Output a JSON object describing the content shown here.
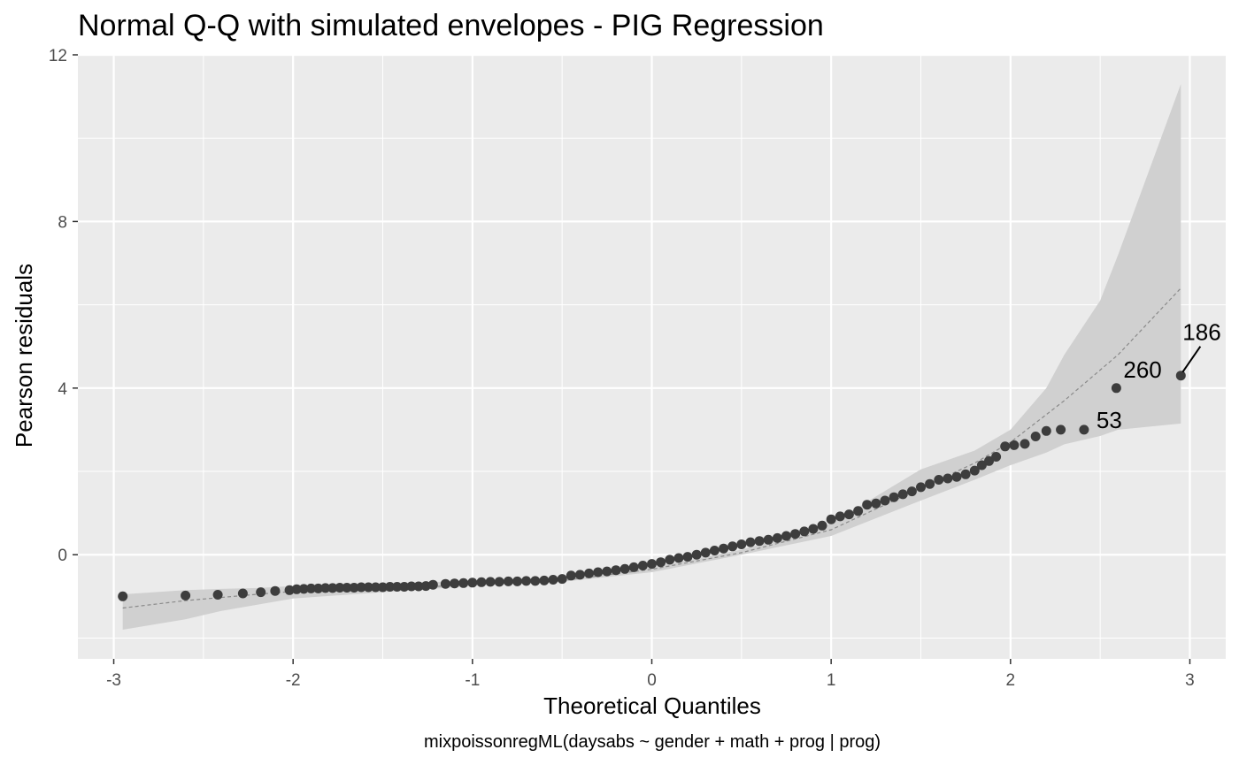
{
  "chart_data": {
    "type": "scatter",
    "title": "Normal Q-Q with simulated envelopes - PIG Regression",
    "xlabel": "Theoretical Quantiles",
    "ylabel": "Pearson residuals",
    "caption": "mixpoissonregML(daysabs ~ gender + math + prog | prog)",
    "xlim": [
      -3.2,
      3.2
    ],
    "ylim": [
      -2.5,
      12
    ],
    "x_ticks": [
      -3,
      -2,
      -1,
      0,
      1,
      2,
      3
    ],
    "x_tick_labels": [
      "-3",
      "-2",
      "-1",
      "0",
      "1",
      "2",
      "3"
    ],
    "y_ticks": [
      0,
      4,
      8,
      12
    ],
    "y_tick_labels": [
      "0",
      "4",
      "8",
      "12"
    ],
    "grid": true,
    "colors": {
      "panel": "#ebebeb",
      "grid": "#ffffff",
      "points": "#3d3d3d",
      "envelope": "#d0d0d0",
      "median_line": "#8a8a8a"
    },
    "envelope": {
      "x": [
        -2.95,
        -2.6,
        -2.4,
        -2.2,
        -2.0,
        -1.5,
        -1.0,
        -0.5,
        0.0,
        0.5,
        1.0,
        1.5,
        1.8,
        2.0,
        2.2,
        2.3,
        2.5,
        2.6,
        2.95
      ],
      "upper": [
        -0.95,
        -0.85,
        -0.82,
        -0.8,
        -0.75,
        -0.7,
        -0.62,
        -0.55,
        -0.3,
        0.12,
        0.75,
        2.05,
        2.5,
        3.0,
        4.0,
        4.8,
        6.1,
        7.2,
        11.3
      ],
      "lower": [
        -1.8,
        -1.55,
        -1.35,
        -1.2,
        -1.05,
        -0.9,
        -0.75,
        -0.65,
        -0.42,
        0.0,
        0.45,
        1.3,
        1.8,
        2.15,
        2.45,
        2.65,
        2.85,
        3.0,
        3.15
      ]
    },
    "median_line": {
      "x": [
        -2.95,
        -2.6,
        -2.2,
        -2.0,
        -1.5,
        -1.0,
        -0.5,
        0.0,
        0.5,
        1.0,
        1.5,
        1.8,
        2.0,
        2.3,
        2.6,
        2.95
      ],
      "y": [
        -1.28,
        -1.1,
        -0.95,
        -0.88,
        -0.82,
        -0.72,
        -0.62,
        -0.35,
        0.05,
        0.6,
        1.6,
        2.2,
        2.7,
        3.7,
        4.8,
        6.4
      ]
    },
    "points": {
      "x": [
        -2.95,
        -2.6,
        -2.42,
        -2.28,
        -2.18,
        -2.1,
        -2.02,
        -1.98,
        -1.94,
        -1.9,
        -1.86,
        -1.82,
        -1.78,
        -1.74,
        -1.7,
        -1.66,
        -1.62,
        -1.58,
        -1.54,
        -1.5,
        -1.46,
        -1.42,
        -1.38,
        -1.34,
        -1.3,
        -1.26,
        -1.22,
        -1.15,
        -1.1,
        -1.05,
        -1.0,
        -0.95,
        -0.9,
        -0.85,
        -0.8,
        -0.75,
        -0.7,
        -0.65,
        -0.6,
        -0.55,
        -0.5,
        -0.45,
        -0.4,
        -0.35,
        -0.3,
        -0.25,
        -0.2,
        -0.15,
        -0.1,
        -0.05,
        0.0,
        0.05,
        0.1,
        0.15,
        0.2,
        0.25,
        0.3,
        0.35,
        0.4,
        0.45,
        0.5,
        0.55,
        0.6,
        0.65,
        0.7,
        0.75,
        0.8,
        0.85,
        0.9,
        0.95,
        1.0,
        1.05,
        1.1,
        1.15,
        1.2,
        1.25,
        1.3,
        1.35,
        1.4,
        1.45,
        1.5,
        1.55,
        1.6,
        1.65,
        1.7,
        1.75,
        1.8,
        1.84,
        1.88,
        1.92,
        1.97,
        2.02,
        2.08,
        2.14,
        2.2,
        2.28,
        2.41,
        2.59,
        2.95
      ],
      "y": [
        -1.0,
        -0.98,
        -0.96,
        -0.93,
        -0.9,
        -0.87,
        -0.85,
        -0.83,
        -0.82,
        -0.81,
        -0.81,
        -0.8,
        -0.8,
        -0.79,
        -0.79,
        -0.79,
        -0.78,
        -0.78,
        -0.78,
        -0.78,
        -0.77,
        -0.77,
        -0.77,
        -0.76,
        -0.76,
        -0.75,
        -0.72,
        -0.7,
        -0.69,
        -0.68,
        -0.67,
        -0.66,
        -0.65,
        -0.65,
        -0.64,
        -0.64,
        -0.63,
        -0.63,
        -0.62,
        -0.6,
        -0.58,
        -0.5,
        -0.48,
        -0.45,
        -0.42,
        -0.4,
        -0.37,
        -0.34,
        -0.3,
        -0.26,
        -0.22,
        -0.18,
        -0.12,
        -0.08,
        -0.05,
        0.0,
        0.05,
        0.1,
        0.15,
        0.2,
        0.25,
        0.3,
        0.33,
        0.36,
        0.4,
        0.45,
        0.5,
        0.56,
        0.62,
        0.7,
        0.85,
        0.92,
        0.97,
        1.05,
        1.2,
        1.23,
        1.3,
        1.38,
        1.45,
        1.52,
        1.62,
        1.7,
        1.8,
        1.83,
        1.87,
        1.93,
        2.02,
        2.15,
        2.25,
        2.35,
        2.6,
        2.63,
        2.66,
        2.84,
        2.97,
        3.0,
        3.0,
        4.0,
        4.3
      ]
    },
    "labeled_points": [
      {
        "label": "186",
        "x": 2.95,
        "y": 4.3
      },
      {
        "label": "260",
        "x": 2.59,
        "y": 4.0
      },
      {
        "label": "53",
        "x": 2.41,
        "y": 3.0
      }
    ]
  }
}
